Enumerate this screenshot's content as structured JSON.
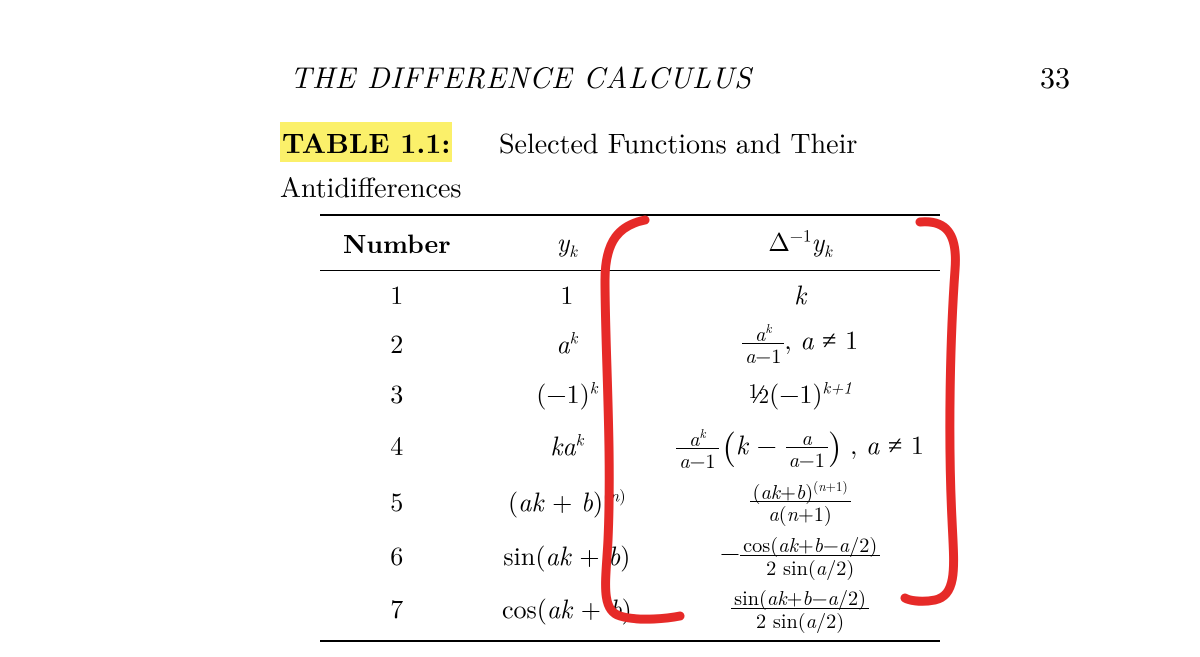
{
  "page": {
    "running_title": "THE DIFFERENCE CALCULUS",
    "page_number": "33"
  },
  "caption": {
    "label": "TABLE 1.1:",
    "rest": "Selected Functions and Their",
    "line2": "Antidifferences"
  },
  "highlight_color": "#fbf06a",
  "annotation_stroke": "#e62a28",
  "table": {
    "headers": {
      "number": "Number",
      "yk_html": "<span class='mi'>y</span><span class='sub'>k</span>",
      "dyk_html": "&#916;<span class='sup'>&minus;1</span><span class='mi'>y</span><span class='sub'>k</span>"
    },
    "rows": [
      {
        "n": "1",
        "yk_html": "1",
        "dyk_html": "<span class='mi'>k</span>"
      },
      {
        "n": "2",
        "yk_html": "<span class='mi'>a</span><span class='supit'>k</span>",
        "dyk_html": "<span class='nowrap'><span class='frac'><span class='num'><span class='mi'>a</span><span class='supit'>k</span></span><span class='den'><span class='mi'>a</span>&minus;1</span></span>, <span class='mi'>a</span> &ne; 1</span>"
      },
      {
        "n": "3",
        "yk_html": "(&minus;1)<span class='supit'>k</span>",
        "dyk_html": "<span class='nowrap'><span style='font-size:0.8em;vertical-align:0.25em;'>1</span>&#8725;<span style='font-size:0.8em;'>2</span>(&minus;1)<span class='supit'>k+1</span></span>"
      },
      {
        "n": "4",
        "yk_html": "<span class='mi'>k</span><span class='mi'>a</span><span class='supit'>k</span>",
        "dyk_html": "<span class='nowrap'><span class='frac'><span class='num'><span class='mi'>a</span><span class='supit'>k</span></span><span class='den'><span class='mi'>a</span>&minus;1</span></span><span class='msp'></span><span class='bigparen'>(</span><span class='mi'>k</span> &minus; <span class='frac'><span class='num'><span class='mi'>a</span></span><span class='den'><span class='mi'>a</span>&minus;1</span></span><span class='bigparen'>)</span> , <span class='mi'>a</span> &ne; 1</span>"
      },
      {
        "n": "5",
        "yk_html": "<span class='nowrap'>(<span class='mi'>a</span><span class='mi'>k</span> + <span class='mi'>b</span>)<span class='sup'>(<span class='mi'>n</span>)</span></span>",
        "dyk_html": "<span class='frac'><span class='num'>(<span class='mi'>a</span><span class='mi'>k</span>+<span class='mi'>b</span>)<span class='sup'>(<span class='mi'>n</span>+1)</span></span><span class='den'><span class='mi'>a</span>(<span class='mi'>n</span>+1)</span></span>"
      },
      {
        "n": "6",
        "yk_html": "sin(<span class='mi'>a</span><span class='mi'>k</span> + <span class='mi'>b</span>)",
        "dyk_html": "<span class='nowrap'>&minus;<span class='frac'><span class='num'>cos(<span class='mi'>a</span><span class='mi'>k</span>+<span class='mi'>b</span>&minus;<span class='mi'>a</span>/2)</span><span class='den'>2 sin(<span class='mi'>a</span>/2)</span></span></span>"
      },
      {
        "n": "7",
        "yk_html": "cos(<span class='mi'>a</span><span class='mi'>k</span> + <span class='mi'>b</span>)",
        "dyk_html": "<span class='frac'><span class='num'>sin(<span class='mi'>a</span><span class='mi'>k</span>+<span class='mi'>b</span>&minus;<span class='mi'>a</span>/2)</span><span class='den'>2 sin(<span class='mi'>a</span>/2)</span></span>"
      }
    ]
  },
  "annotation_paths": [
    "M 645 220 C 620 225, 605 240, 605 280 C 605 350, 612 450, 608 540 C 606 580, 600 610, 620 616 C 640 622, 670 618, 680 616",
    "M 920 222 C 945 220, 958 232, 955 270 C 950 340, 948 440, 952 520 C 954 565, 958 595, 935 600 C 920 603, 908 600, 905 598"
  ]
}
